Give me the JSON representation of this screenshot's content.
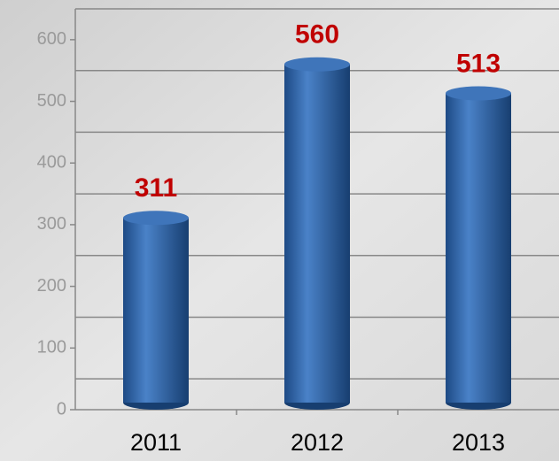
{
  "chart_data": {
    "type": "bar",
    "categories": [
      "2011",
      "2012",
      "2013"
    ],
    "values": [
      311,
      560,
      513
    ],
    "color": "#2f65a8",
    "label_color": "#c00000",
    "ylim": [
      0,
      650
    ],
    "yticks": [
      0,
      100,
      200,
      300,
      400,
      500,
      600
    ],
    "ygrid": [
      50,
      150,
      250,
      350,
      450,
      550
    ],
    "grid": true
  }
}
